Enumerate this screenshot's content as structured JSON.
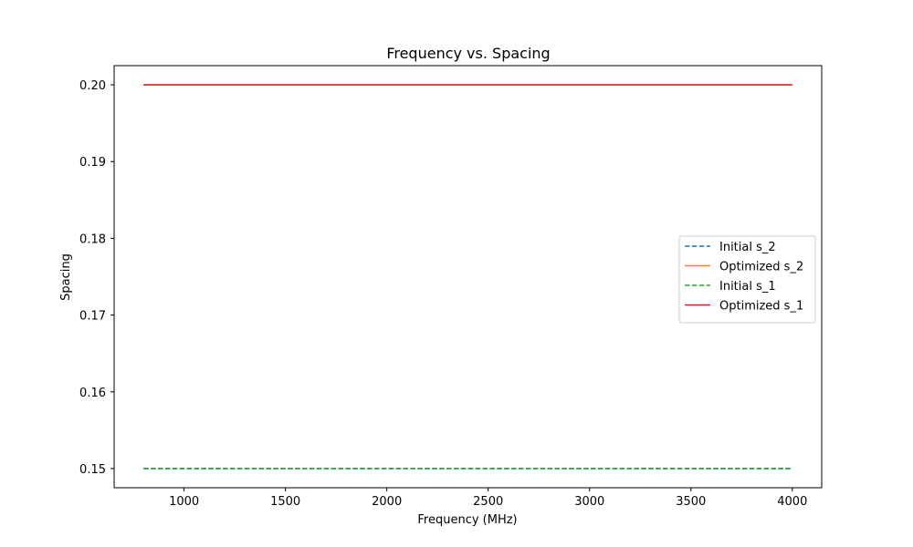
{
  "chart_data": {
    "type": "line",
    "title": "Frequency vs. Spacing",
    "xlabel": "Frequency (MHz)",
    "ylabel": "Spacing",
    "xlim": [
      655,
      4145
    ],
    "ylim": [
      0.1475,
      0.2025
    ],
    "xticks": [
      1000,
      1500,
      2000,
      2500,
      3000,
      3500,
      4000
    ],
    "yticks": [
      0.15,
      0.16,
      0.17,
      0.18,
      0.19,
      0.2
    ],
    "ytick_labels": [
      "0.15",
      "0.16",
      "0.17",
      "0.18",
      "0.19",
      "0.20"
    ],
    "grid": false,
    "legend_position": "center-right",
    "series": [
      {
        "name": "Initial s_2",
        "x": [
          800,
          4000
        ],
        "y": [
          0.15,
          0.15
        ],
        "color": "#1f77b4",
        "style": "dashed"
      },
      {
        "name": "Optimized s_2",
        "x": [
          800,
          4000
        ],
        "y": [
          0.2,
          0.2
        ],
        "color": "#ff7f0e",
        "style": "solid"
      },
      {
        "name": "Initial s_1",
        "x": [
          800,
          4000
        ],
        "y": [
          0.15,
          0.15
        ],
        "color": "#2ca02c",
        "style": "dashed"
      },
      {
        "name": "Optimized s_1",
        "x": [
          800,
          4000
        ],
        "y": [
          0.2,
          0.2
        ],
        "color": "#d62728",
        "style": "solid"
      }
    ]
  }
}
